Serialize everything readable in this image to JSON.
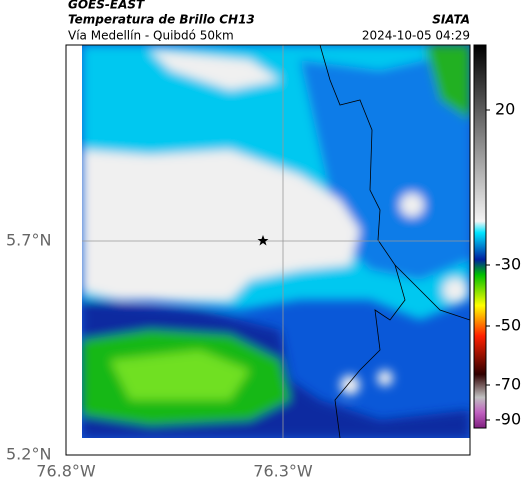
{
  "header": {
    "product": "GOES-EAST",
    "subtitle": "Temperatura de Brillo CH13",
    "location": "Vía Medellín - Quibdó 50km",
    "source": "SIATA",
    "datetime": "2024-10-05 04:29"
  },
  "map": {
    "lat_labels": [
      "5.7°N",
      "5.2°N"
    ],
    "lon_labels": [
      "76.8°W",
      "76.3°W"
    ]
  },
  "colorbar": {
    "labels": [
      "20",
      "-30",
      "-50",
      "-70",
      "-90"
    ]
  }
}
